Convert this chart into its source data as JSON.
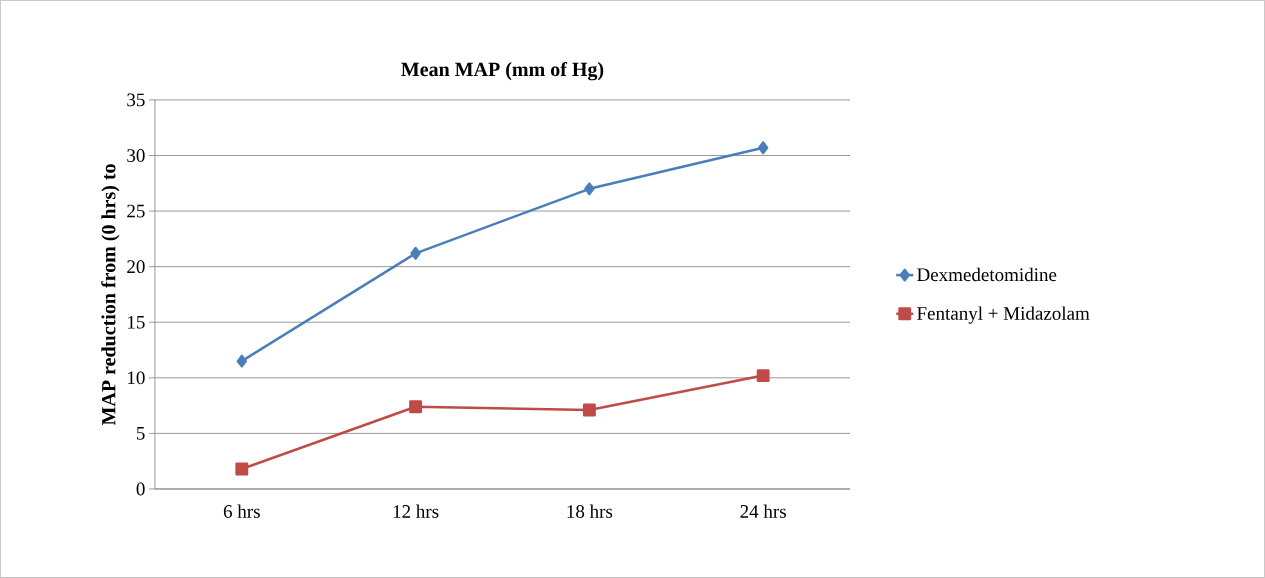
{
  "chart_data": {
    "type": "line",
    "title": "Mean MAP (mm of Hg)",
    "ylabel": "MAP reduction from (0 hrs) to",
    "categories": [
      "6 hrs",
      "12 hrs",
      "18 hrs",
      "24 hrs"
    ],
    "series": [
      {
        "name": "Dexmedetomidine",
        "color": "#4a7ebb",
        "marker": "diamond",
        "values": [
          11.5,
          21.2,
          27.0,
          30.7
        ]
      },
      {
        "name": "Fentanyl + Midazolam",
        "color": "#be4b48",
        "marker": "square",
        "values": [
          1.8,
          7.4,
          7.1,
          10.2
        ]
      }
    ],
    "ylim": [
      0,
      35
    ],
    "yticks": [
      0,
      5,
      10,
      15,
      20,
      25,
      30,
      35
    ],
    "grid": "y",
    "legend": "right",
    "line_style": "solid"
  }
}
